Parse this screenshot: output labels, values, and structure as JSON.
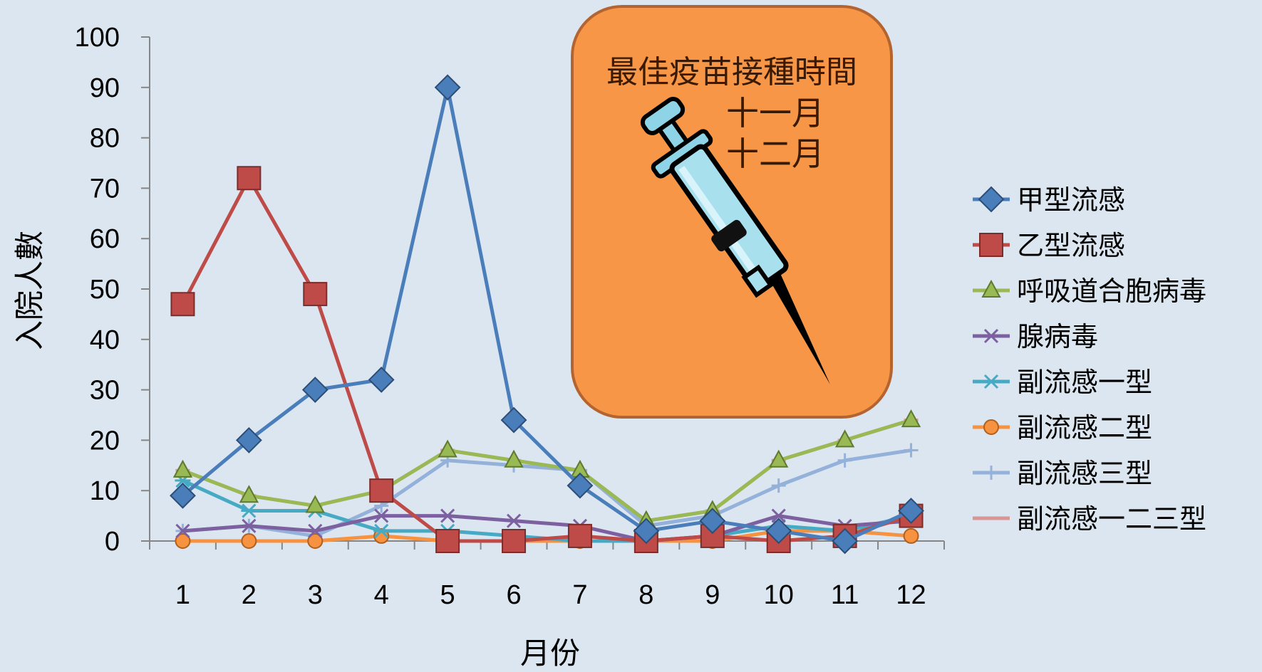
{
  "chart_data": {
    "type": "line",
    "xlabel": "月份",
    "ylabel": "入院人數",
    "ylim": [
      0,
      100
    ],
    "yticks": [
      0,
      10,
      20,
      30,
      40,
      50,
      60,
      70,
      80,
      90,
      100
    ],
    "categories": [
      "1",
      "2",
      "3",
      "4",
      "5",
      "6",
      "7",
      "8",
      "9",
      "10",
      "11",
      "12"
    ],
    "grid": false,
    "legend_position": "right",
    "series": [
      {
        "name": "甲型流感",
        "color": "#4a7ebb",
        "marker": "diamond",
        "values": [
          9,
          20,
          30,
          32,
          90,
          24,
          11,
          2,
          4,
          2,
          0,
          6
        ]
      },
      {
        "name": "乙型流感",
        "color": "#be4b48",
        "marker": "square",
        "values": [
          47,
          72,
          49,
          10,
          0,
          0,
          1,
          0,
          1,
          0,
          1,
          5
        ]
      },
      {
        "name": "呼吸道合胞病毒",
        "color": "#98b954",
        "marker": "triangle",
        "values": [
          14,
          9,
          7,
          10,
          18,
          16,
          14,
          4,
          6,
          16,
          20,
          24
        ]
      },
      {
        "name": "腺病毒",
        "color": "#7d60a0",
        "marker": "x",
        "values": [
          2,
          3,
          2,
          5,
          5,
          4,
          3,
          0,
          1,
          5,
          3,
          4
        ]
      },
      {
        "name": "副流感一型",
        "color": "#46aac5",
        "marker": "star",
        "values": [
          12,
          6,
          6,
          2,
          2,
          1,
          0,
          0,
          1,
          3,
          2,
          5
        ]
      },
      {
        "name": "副流感二型",
        "color": "#f69240",
        "marker": "circle",
        "values": [
          0,
          0,
          0,
          1,
          0,
          0,
          0,
          0,
          0,
          2,
          2,
          1
        ]
      },
      {
        "name": "副流感三型",
        "color": "#94b1d9",
        "marker": "plus",
        "values": [
          2,
          3,
          1,
          7,
          16,
          15,
          14,
          3,
          5,
          11,
          16,
          18
        ]
      },
      {
        "name": "副流感一二三型",
        "color": "#d99694",
        "marker": "dash",
        "values": [
          14,
          9,
          7,
          10,
          18,
          16,
          14,
          4,
          6,
          16,
          20,
          24
        ]
      }
    ]
  },
  "callout": {
    "title": "最佳疫苗接種時間",
    "month1": "十一月",
    "month2": "十二月",
    "icon": "syringe-icon",
    "fill": "#f79646",
    "stroke": "#b46430"
  }
}
